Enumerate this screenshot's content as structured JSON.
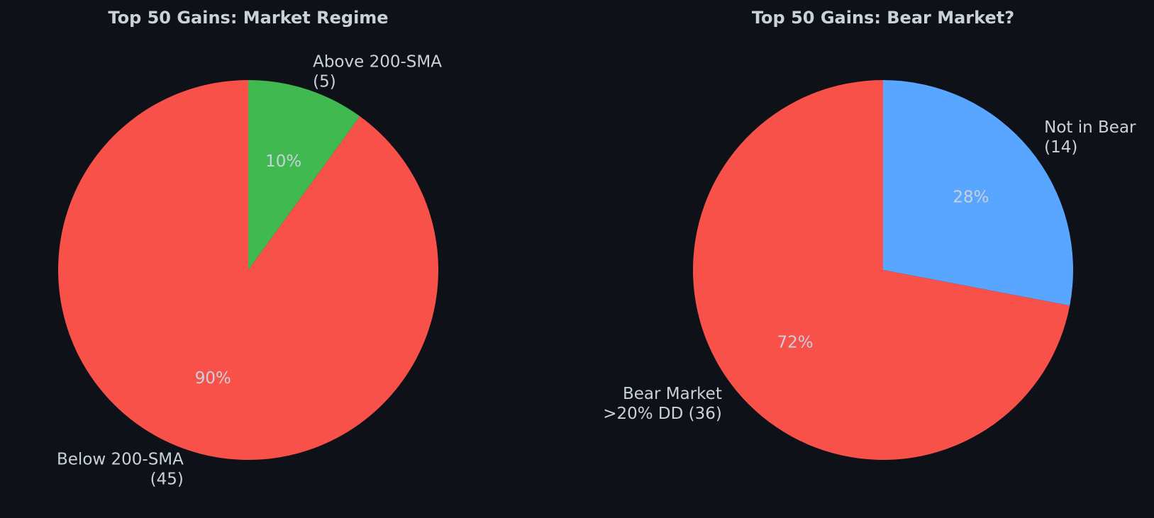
{
  "figure": {
    "background": "#0e1118",
    "text_color": "#c9d1d9"
  },
  "chart_data": [
    {
      "type": "pie",
      "title": "Top 50 Gains: Market Regime",
      "start": "top",
      "direction": "clockwise",
      "slices": [
        {
          "label": [
            "Above 200-SMA",
            "(5)"
          ],
          "value": 5,
          "percent_label": "10%",
          "color": "#3fb950"
        },
        {
          "label": [
            "Below 200-SMA",
            "(45)"
          ],
          "value": 45,
          "percent_label": "90%",
          "color": "#f85149"
        }
      ]
    },
    {
      "type": "pie",
      "title": "Top 50 Gains: Bear Market?",
      "start": "top",
      "direction": "clockwise",
      "slices": [
        {
          "label": [
            "Not in Bear",
            "(14)"
          ],
          "value": 14,
          "percent_label": "28%",
          "color": "#58a6ff"
        },
        {
          "label": [
            "Bear Market",
            ">20% DD (36)"
          ],
          "value": 36,
          "percent_label": "72%",
          "color": "#f85149"
        }
      ]
    }
  ]
}
